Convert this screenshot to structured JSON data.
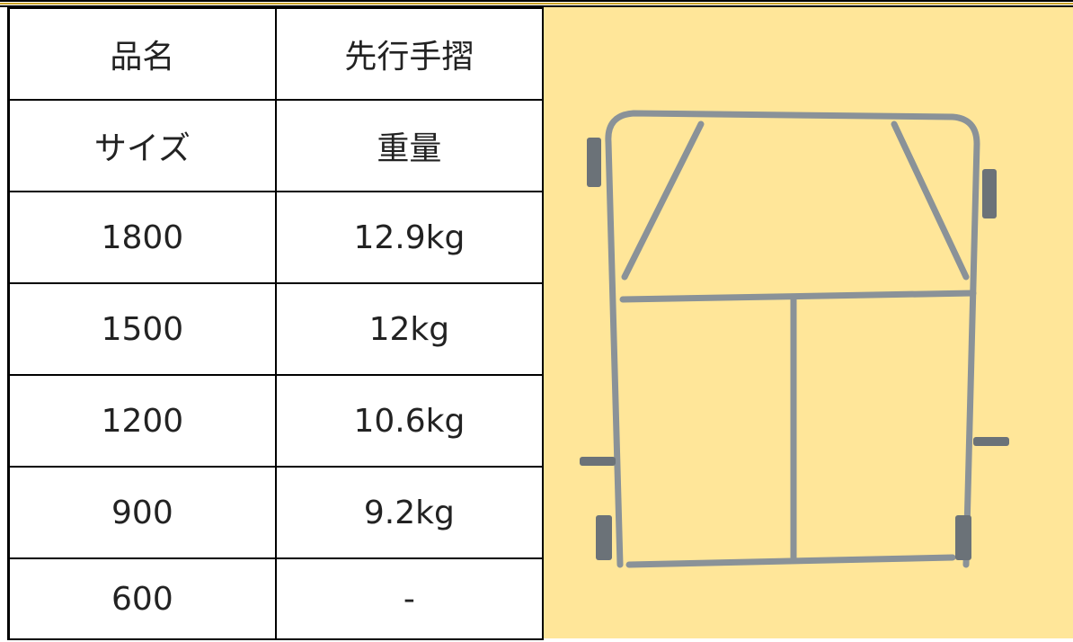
{
  "table": {
    "rows": [
      [
        "品名",
        "先行手摺"
      ],
      [
        "サイズ",
        "重量"
      ],
      [
        "1800",
        "12.9kg"
      ],
      [
        "1500",
        "12kg"
      ],
      [
        "1200",
        "10.6kg"
      ],
      [
        "900",
        "9.2kg"
      ],
      [
        "600",
        "-"
      ]
    ]
  }
}
